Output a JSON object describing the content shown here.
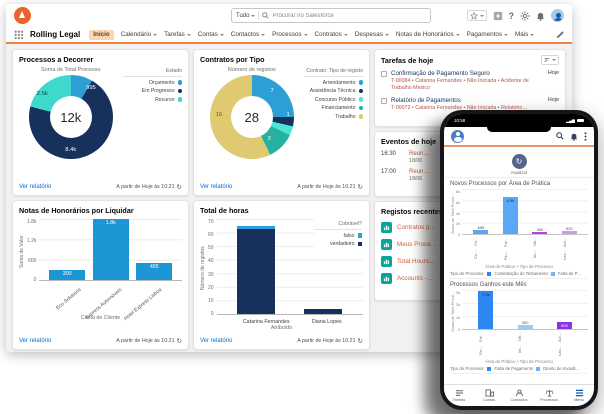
{
  "window": {
    "search": {
      "scope": "Tudo",
      "placeholder": "Procurar no Salesforce"
    },
    "app_name": "Rolling Legal",
    "nav_tabs": [
      {
        "label": "Início",
        "active": true
      },
      {
        "label": "Calendário"
      },
      {
        "label": "Tarefas"
      },
      {
        "label": "Contas"
      },
      {
        "label": "Contactos"
      },
      {
        "label": "Processos"
      },
      {
        "label": "Contratos"
      },
      {
        "label": "Despesas"
      },
      {
        "label": "Notas de Honorários"
      },
      {
        "label": "Pagamentos"
      },
      {
        "label": "Mais"
      }
    ],
    "footer_link": "Ver relatório",
    "as_of": "A partir de Hoje às 10:21",
    "help_icon_label": "?"
  },
  "colors": {
    "brand_orange": "#e9632c",
    "divider_orange": "#f1823e",
    "navy": "#16325c",
    "link_blue": "#0170d3",
    "record_red": "#b5574b",
    "recent_link_orange": "#c96336",
    "report_icon_teal": "#06a59a"
  },
  "tarefas": {
    "title": "Tarefas de hoje",
    "items": [
      {
        "title": "Confirmação de Pagamento Seguro",
        "meta": "T-00084 • Catarina Fernandes • Não Iniciada • Acidente de Trabalho Mexico",
        "due": "Hoje"
      },
      {
        "title": "Relatório de Pagamentos",
        "meta": "T-00072 • Catarina Fernandes • Não Iniciada • Relatório…",
        "due": "Hoje"
      }
    ]
  },
  "eventos": {
    "title": "Eventos de hoje",
    "items": [
      {
        "time": "16:30",
        "title": "Reun…",
        "date": "18/06"
      },
      {
        "time": "17:00",
        "title": "Reun…",
        "date": "18/06"
      }
    ]
  },
  "registos": {
    "title": "Registos recentes",
    "items": [
      {
        "label": "Contratos p…"
      },
      {
        "label": "Meus Proce…"
      },
      {
        "label": "Total Hours…"
      },
      {
        "label": "Accounts -…"
      }
    ]
  },
  "phone": {
    "status_time": "10:58",
    "refresh_label": "Atualizar",
    "tabs": [
      {
        "label": "Tarefas"
      },
      {
        "label": "Contas"
      },
      {
        "label": "Contactos"
      },
      {
        "label": "Processos"
      },
      {
        "label": "Menu",
        "active": true
      }
    ]
  },
  "chart_data": [
    {
      "id": "processos-a-decorrer",
      "type": "pie",
      "title": "Processos a Decorrer",
      "subtitle": "Soma de Total Processo",
      "center_label": "12k",
      "legend_title": "Estado",
      "legend_position": "right",
      "segments": [
        {
          "label": "Orçamento",
          "value": 995,
          "display": "995",
          "color": "#2e9fd4"
        },
        {
          "label": "Em Progresso",
          "value": 8400,
          "display": "8.4k",
          "color": "#16325c"
        },
        {
          "label": "Recurso",
          "value": 2500,
          "display": "2.5k",
          "color": "#3fd8cc"
        }
      ]
    },
    {
      "id": "contratos-por-tipo",
      "type": "pie",
      "title": "Contratos por Tipo",
      "subtitle": "Número de registos",
      "center_label": "28",
      "legend_title": "Contrato: Tipo de registo",
      "legend_position": "right",
      "segments": [
        {
          "label": "Arrendamento",
          "value": 7,
          "display": "7",
          "color": "#2e9fd4"
        },
        {
          "label": "Assistência Técnica",
          "value": 1,
          "display": "1",
          "color": "#16325c"
        },
        {
          "label": "Concurso Público",
          "value": 1,
          "display": "",
          "color": "#4fe3d4"
        },
        {
          "label": "Financiamento",
          "value": 3,
          "display": "3",
          "color": "#26b0a0"
        },
        {
          "label": "Trabalho",
          "value": 16,
          "display": "16",
          "color": "#e0ca71"
        }
      ]
    },
    {
      "id": "notas-honorarios-por-liquidar",
      "type": "bar",
      "title": "Notas de Honorários por Liquidar",
      "ylabel": "Soma de Valor",
      "xlabel": "Conta de Cliente",
      "yticks": [
        "1.8k",
        "1.2k",
        "600",
        "0"
      ],
      "ylim": [
        0,
        1800
      ],
      "max": 1800,
      "bar_color": "#1d96d6",
      "bars": [
        {
          "label": "Eco Solutions",
          "value": 300,
          "display": "300"
        },
        {
          "label": "Express Automóveis",
          "value": 1800,
          "display": "1.8k"
        },
        {
          "label": "Hotel Express Lisboa",
          "value": 495,
          "display": "495"
        }
      ]
    },
    {
      "id": "total-de-horas",
      "type": "bar",
      "stacked": true,
      "title": "Total de horas",
      "legend_title": "Cobrável?",
      "ylabel": "Número de registos",
      "xlabel": "Atribuído",
      "yticks": [
        "70",
        "60",
        "50",
        "40",
        "30",
        "20",
        "10",
        "0"
      ],
      "ylim": [
        0,
        70
      ],
      "max": 70,
      "categories": [
        "Catarina Fernandes",
        "Diana Lopes"
      ],
      "series": [
        {
          "name": "falso",
          "color": "#2e9fe0",
          "values": [
            2,
            0
          ]
        },
        {
          "name": "verdadeiro",
          "color": "#16325c",
          "values": [
            63,
            4
          ]
        }
      ]
    },
    {
      "id": "novos-processos-por-area",
      "type": "bar",
      "title": "Novos Processos por Área de Prática",
      "ylabel": "Soma de Total Proce…",
      "xlabel": "Área de Prática + Tipo de Processo",
      "yticks": [
        "8k",
        "6k",
        "4k",
        "2k",
        "0"
      ],
      "ylim": [
        0,
        8000
      ],
      "max": 8000,
      "bars": [
        {
          "value": 695,
          "display": "695",
          "color": "#5aa7f5",
          "cat1": "Co…",
          "cat2": "Co…"
        },
        {
          "value": 6500,
          "display": "6.5k",
          "color": "#5aa7f5",
          "cat1": "Fal…",
          "cat2": "Fin…"
        },
        {
          "value": 300,
          "display": "300",
          "color": "#c13ce0",
          "cat1": "Ob…",
          "cat2": "Im…"
        },
        {
          "value": 525,
          "display": "525",
          "color": "#c79df2",
          "cat1": "Aci…",
          "cat2": "Lev…"
        }
      ],
      "legend_title": "Tipo de Processo:",
      "legend": [
        {
          "label": "Contestação do Testamento",
          "color": "#2e86f0"
        },
        {
          "label": "Falta de P…",
          "color": "#6fb3f5"
        }
      ]
    },
    {
      "id": "processos-ganhos-este-mes",
      "type": "bar",
      "title": "Processos Ganhos este Mês",
      "ylabel": "Soma de Total Proce…",
      "xlabel": "Área de Prática + Tipo de Processo",
      "yticks": [
        "3k",
        "2k",
        "1k",
        "0"
      ],
      "ylim": [
        0,
        3000
      ],
      "max": 3000,
      "bars": [
        {
          "value": 2900,
          "display": "2.9k",
          "color": "#2e86f0",
          "cat1": "Fal…",
          "cat2": "Fin…"
        },
        {
          "value": 300,
          "display": "300",
          "color": "#9cc7f7",
          "cat1": "Ob…",
          "cat2": "Int…"
        },
        {
          "value": 525,
          "display": "525",
          "color": "#8c30e8",
          "cat1": "Aci…",
          "cat2": "Lan…"
        }
      ],
      "legend_title": "Tipo de Processo:",
      "legend": [
        {
          "label": "Falta de Pagamento",
          "color": "#2e86f0"
        },
        {
          "label": "Direito de Invasã…",
          "color": "#6fb3f5"
        }
      ]
    }
  ]
}
